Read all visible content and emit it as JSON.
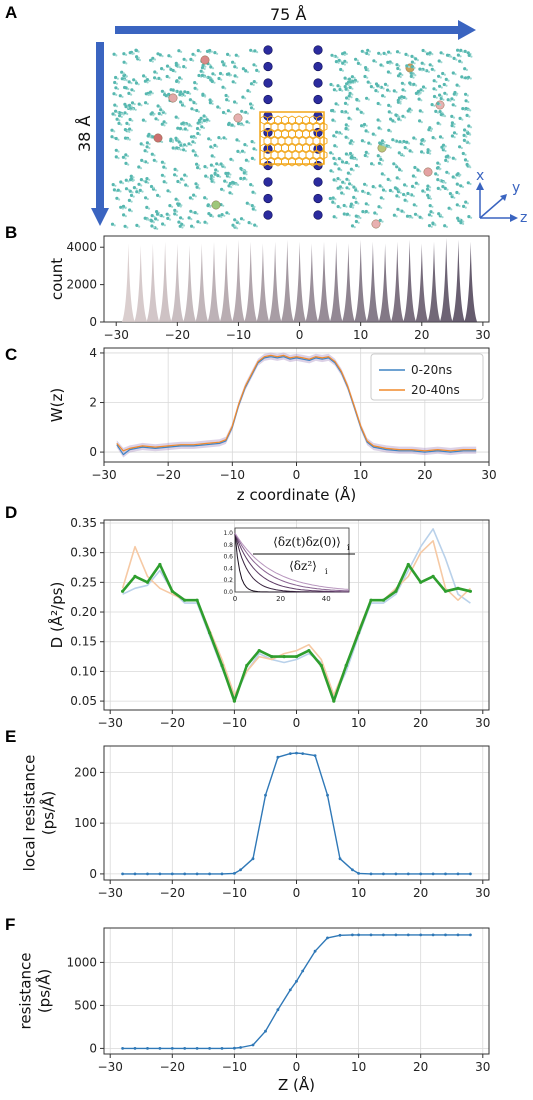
{
  "panel_a": {
    "label": "A",
    "width_label": "75 Å",
    "height_label": "38 Å",
    "axes": {
      "x": "x",
      "y": "y",
      "z": "z"
    },
    "colors": {
      "water": "#57b8b0",
      "ion": "#2b2b9e",
      "nanotube": "#f2a619",
      "arrow": "#3a64c0"
    }
  },
  "chart_data": [
    {
      "panel": "B",
      "type": "bar",
      "ylabel": "count",
      "xlabel": "",
      "xlim": [
        -32,
        31
      ],
      "ylim": [
        0,
        4600
      ],
      "xticks": [
        -30,
        -20,
        -10,
        0,
        10,
        20,
        30
      ],
      "yticks": [
        0,
        2000,
        4000
      ],
      "x": [
        -28,
        -26,
        -24,
        -22,
        -20,
        -18,
        -16,
        -14,
        -12,
        -10,
        -8,
        -6,
        -4,
        -2,
        0,
        2,
        4,
        6,
        8,
        10,
        12,
        14,
        16,
        18,
        20,
        22,
        24,
        26,
        28
      ],
      "values": [
        4200,
        4100,
        4200,
        4300,
        4200,
        4100,
        4200,
        4300,
        4200,
        4400,
        4300,
        4200,
        4300,
        4400,
        4300,
        4200,
        4300,
        4300,
        4200,
        4400,
        4300,
        4200,
        4300,
        4400,
        4200,
        4300,
        4500,
        4400,
        4300
      ],
      "color_start": "#d4c6c6",
      "color_end": "#4a3e54"
    },
    {
      "panel": "C",
      "type": "line",
      "xlabel": "z coordinate (Å)",
      "ylabel": "W(z)",
      "xlim": [
        -30,
        30
      ],
      "ylim": [
        -0.4,
        4.2
      ],
      "xticks": [
        -30,
        -20,
        -10,
        0,
        10,
        20,
        30
      ],
      "yticks": [
        0,
        2,
        4
      ],
      "grid": true,
      "legend": "top-right",
      "x": [
        -28,
        -27,
        -26,
        -25,
        -24,
        -22,
        -20,
        -18,
        -16,
        -14,
        -12,
        -11,
        -10,
        -9,
        -8,
        -7,
        -6,
        -5,
        -4,
        -3,
        -2,
        -1,
        0,
        1,
        2,
        3,
        4,
        5,
        6,
        7,
        8,
        9,
        10,
        11,
        12,
        13,
        14,
        16,
        18,
        20,
        22,
        24,
        26,
        28
      ],
      "series": [
        {
          "name": "0-20ns",
          "color": "#3f84c4",
          "values": [
            0.3,
            -0.1,
            0.1,
            0.15,
            0.2,
            0.15,
            0.2,
            0.25,
            0.25,
            0.3,
            0.35,
            0.45,
            1.0,
            1.9,
            2.6,
            3.1,
            3.6,
            3.8,
            3.85,
            3.8,
            3.85,
            3.75,
            3.8,
            3.75,
            3.7,
            3.8,
            3.75,
            3.8,
            3.6,
            3.2,
            2.6,
            1.8,
            1.0,
            0.4,
            0.2,
            0.15,
            0.1,
            0.05,
            0.05,
            0.0,
            0.05,
            0.0,
            0.05,
            0.05
          ]
        },
        {
          "name": "20-40ns",
          "color": "#f08a2c",
          "values": [
            0.35,
            0.05,
            0.15,
            0.2,
            0.25,
            0.2,
            0.25,
            0.3,
            0.3,
            0.35,
            0.4,
            0.5,
            1.05,
            1.95,
            2.65,
            3.15,
            3.65,
            3.85,
            3.9,
            3.85,
            3.9,
            3.8,
            3.85,
            3.8,
            3.75,
            3.85,
            3.8,
            3.85,
            3.65,
            3.25,
            2.65,
            1.85,
            1.05,
            0.45,
            0.25,
            0.2,
            0.15,
            0.1,
            0.1,
            0.05,
            0.1,
            0.05,
            0.1,
            0.1
          ]
        }
      ]
    },
    {
      "panel": "D",
      "type": "line",
      "xlabel": "",
      "ylabel": "D (Å²/ps)",
      "xlim": [
        -31,
        31
      ],
      "ylim": [
        0.035,
        0.355
      ],
      "xticks": [
        -30,
        -20,
        -10,
        0,
        10,
        20,
        30
      ],
      "yticks": [
        0.05,
        0.1,
        0.15,
        0.2,
        0.25,
        0.3,
        0.35
      ],
      "grid": true,
      "x": [
        -28,
        -26,
        -24,
        -22,
        -20,
        -18,
        -16,
        -14,
        -12,
        -10,
        -8,
        -6,
        -4,
        -2,
        0,
        2,
        4,
        6,
        8,
        10,
        12,
        14,
        16,
        18,
        20,
        22,
        24,
        26,
        28
      ],
      "series": [
        {
          "name": "",
          "color": "#2e9e2e",
          "values": [
            0.235,
            0.26,
            0.25,
            0.28,
            0.235,
            0.22,
            0.22,
            0.165,
            0.11,
            0.05,
            0.11,
            0.135,
            0.125,
            0.125,
            0.125,
            0.135,
            0.11,
            0.05,
            0.11,
            0.165,
            0.22,
            0.22,
            0.235,
            0.28,
            0.25,
            0.26,
            0.235,
            0.24,
            0.235
          ]
        },
        {
          "name": "",
          "color": "#f6c9a4",
          "values": [
            0.24,
            0.31,
            0.26,
            0.24,
            0.23,
            0.22,
            0.22,
            0.17,
            0.12,
            0.06,
            0.1,
            0.125,
            0.12,
            0.13,
            0.135,
            0.145,
            0.12,
            0.06,
            0.11,
            0.17,
            0.22,
            0.22,
            0.24,
            0.26,
            0.3,
            0.32,
            0.24,
            0.22,
            0.24
          ]
        },
        {
          "name": "",
          "color": "#b9d1ea",
          "values": [
            0.23,
            0.24,
            0.245,
            0.27,
            0.235,
            0.215,
            0.215,
            0.16,
            0.105,
            0.055,
            0.1,
            0.13,
            0.12,
            0.115,
            0.12,
            0.13,
            0.115,
            0.055,
            0.1,
            0.16,
            0.215,
            0.215,
            0.23,
            0.27,
            0.31,
            0.34,
            0.29,
            0.23,
            0.215
          ]
        }
      ],
      "inset": {
        "formula_numerator": "⟨δz(t)δz(0)⟩",
        "formula_subscript": "i",
        "formula_denominator": "⟨δz²⟩",
        "xticks": [
          0,
          20,
          40
        ],
        "yticks": [
          0.0,
          0.2,
          0.4,
          0.6,
          0.8,
          1.0
        ]
      }
    },
    {
      "panel": "E",
      "type": "line",
      "xlabel": "",
      "ylabel": "local resistance (ps/Å)",
      "ylabel_lines": [
        "local resistance",
        "(ps/Å)"
      ],
      "xlim": [
        -31,
        31
      ],
      "ylim": [
        -12,
        252
      ],
      "xticks": [
        -30,
        -20,
        -10,
        0,
        10,
        20,
        30
      ],
      "yticks": [
        0,
        100,
        200
      ],
      "grid": true,
      "x": [
        -28,
        -26,
        -24,
        -22,
        -20,
        -18,
        -16,
        -14,
        -12,
        -10,
        -9,
        -7,
        -5,
        -3,
        -1,
        0,
        1,
        3,
        5,
        7,
        9,
        10,
        12,
        14,
        16,
        18,
        20,
        22,
        24,
        26,
        28
      ],
      "series": [
        {
          "name": "",
          "color": "#2f78b7",
          "values": [
            0,
            0,
            0,
            0,
            0,
            0,
            0,
            0,
            0,
            1,
            8,
            30,
            155,
            230,
            237,
            238,
            237,
            233,
            155,
            30,
            8,
            1,
            0,
            0,
            0,
            0,
            0,
            0,
            0,
            0,
            0
          ]
        }
      ]
    },
    {
      "panel": "F",
      "type": "line",
      "xlabel": "Z (Å)",
      "ylabel": "resistance (ps/Å)",
      "ylabel_lines": [
        "resistance",
        "(ps/Å)"
      ],
      "xlim": [
        -31,
        31
      ],
      "ylim": [
        -65,
        1400
      ],
      "xticks": [
        -30,
        -20,
        -10,
        0,
        10,
        20,
        30
      ],
      "yticks": [
        0,
        500,
        1000
      ],
      "grid": true,
      "x": [
        -28,
        -26,
        -24,
        -22,
        -20,
        -18,
        -16,
        -14,
        -12,
        -10,
        -9,
        -7,
        -5,
        -3,
        -1,
        0,
        1,
        3,
        5,
        7,
        9,
        10,
        12,
        14,
        16,
        18,
        20,
        22,
        24,
        26,
        28
      ],
      "series": [
        {
          "name": "",
          "color": "#2f78b7",
          "values": [
            0,
            0,
            0,
            0,
            0,
            0,
            0,
            0,
            0,
            2,
            10,
            40,
            200,
            450,
            680,
            780,
            900,
            1130,
            1285,
            1315,
            1320,
            1320,
            1320,
            1320,
            1320,
            1320,
            1320,
            1320,
            1320,
            1320,
            1320
          ]
        }
      ]
    }
  ]
}
